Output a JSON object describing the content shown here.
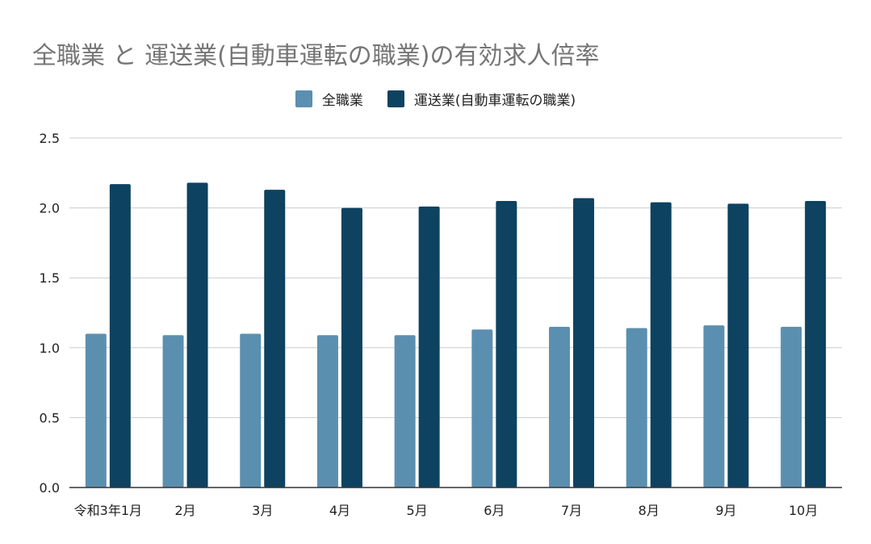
{
  "chart_data": {
    "type": "bar",
    "title": "全職業 と 運送業(自動車運転の職業)の有効求人倍率",
    "xlabel": "",
    "ylabel": "",
    "categories": [
      "令和3年1月",
      "2月",
      "3月",
      "4月",
      "5月",
      "6月",
      "7月",
      "8月",
      "9月",
      "10月"
    ],
    "series": [
      {
        "name": "全職業",
        "color": "#5b8fb0",
        "values": [
          1.1,
          1.09,
          1.1,
          1.09,
          1.09,
          1.13,
          1.15,
          1.14,
          1.16,
          1.15
        ]
      },
      {
        "name": "運送業(自動車運転の職業)",
        "color": "#0d4261",
        "values": [
          2.17,
          2.18,
          2.13,
          2.0,
          2.01,
          2.05,
          2.07,
          2.04,
          2.03,
          2.05
        ]
      }
    ],
    "ylim": [
      0,
      2.5
    ],
    "yticks": [
      "0.0",
      "0.5",
      "1.0",
      "1.5",
      "2.0",
      "2.5"
    ],
    "grid": true,
    "legend_position": "top-center"
  }
}
